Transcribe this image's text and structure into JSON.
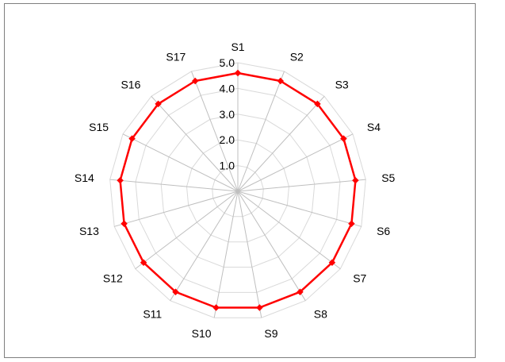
{
  "chart_data": {
    "type": "radar",
    "categories": [
      "S1",
      "S2",
      "S3",
      "S4",
      "S5",
      "S6",
      "S7",
      "S8",
      "S9",
      "S10",
      "S11",
      "S12",
      "S13",
      "S14",
      "S15",
      "S16",
      "S17"
    ],
    "series": [
      {
        "values": [
          4.6,
          4.6,
          4.6,
          4.6,
          4.6,
          4.6,
          4.6,
          4.6,
          4.6,
          4.6,
          4.6,
          4.6,
          4.6,
          4.6,
          4.6,
          4.6,
          4.6
        ],
        "color": "#ff0000"
      }
    ],
    "rlim": [
      0,
      5
    ],
    "ticks": [
      1.0,
      2.0,
      3.0,
      4.0,
      5.0
    ],
    "tick_labels": [
      "1.0",
      "2.0",
      "3.0",
      "4.0",
      "5.0"
    ],
    "grid": true
  }
}
